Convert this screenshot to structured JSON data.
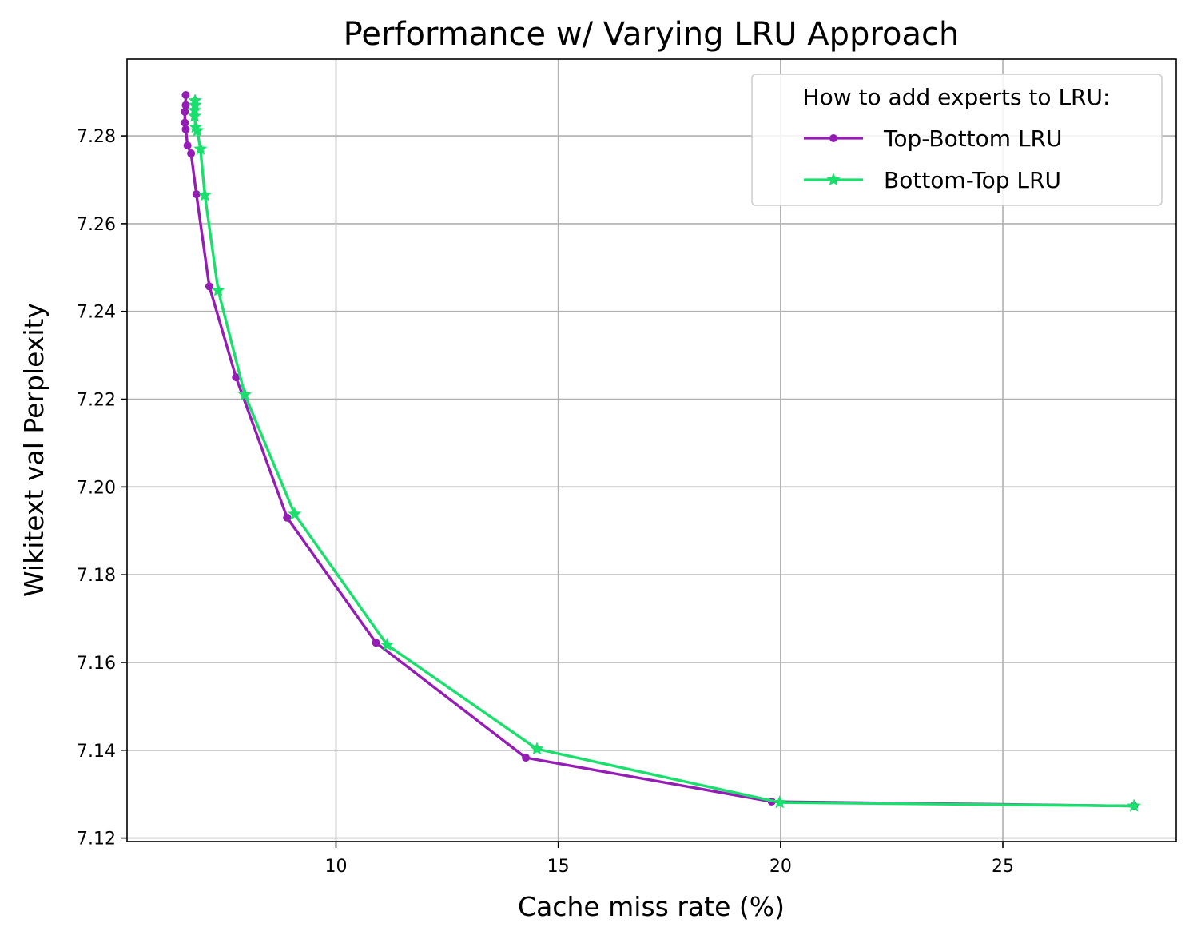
{
  "chart_data": {
    "type": "line",
    "title": "Performance w/ Varying LRU Approach",
    "xlabel": "Cache miss rate (%)",
    "ylabel": "Wikitext val Perplexity",
    "xlim": [
      5.3,
      28.9
    ],
    "ylim": [
      7.1192,
      7.2975
    ],
    "xticks": [
      10,
      15,
      20,
      25
    ],
    "yticks": [
      7.12,
      7.14,
      7.16,
      7.18,
      7.2,
      7.22,
      7.24,
      7.26,
      7.28
    ],
    "xtick_labels": [
      "10",
      "15",
      "20",
      "25"
    ],
    "ytick_labels": [
      "7.12",
      "7.14",
      "7.16",
      "7.18",
      "7.20",
      "7.22",
      "7.24",
      "7.26",
      "7.28"
    ],
    "grid": true,
    "legend": {
      "title": "How to add experts to LRU:",
      "position": "top-right"
    },
    "series": [
      {
        "name": "Top-Bottom LRU",
        "color": "#951cb5",
        "marker": "circle",
        "x": [
          6.62,
          6.62,
          6.6,
          6.6,
          6.62,
          6.66,
          6.74,
          6.86,
          7.15,
          7.75,
          8.9,
          10.9,
          14.27,
          19.8,
          27.95
        ],
        "y": [
          7.2893,
          7.287,
          7.2855,
          7.283,
          7.2815,
          7.2778,
          7.276,
          7.2667,
          7.2457,
          7.225,
          7.193,
          7.1645,
          7.1383,
          7.1283,
          7.1273
        ]
      },
      {
        "name": "Bottom-Top LRU",
        "color": "#19e06c",
        "marker": "star",
        "x": [
          6.83,
          6.83,
          6.82,
          6.82,
          6.84,
          6.88,
          6.95,
          7.05,
          7.35,
          7.95,
          9.07,
          11.15,
          14.52,
          19.98,
          27.95
        ],
        "y": [
          7.288,
          7.287,
          7.2858,
          7.2845,
          7.282,
          7.2812,
          7.277,
          7.2665,
          7.2448,
          7.221,
          7.1938,
          7.164,
          7.1403,
          7.1281,
          7.1273
        ]
      }
    ]
  }
}
